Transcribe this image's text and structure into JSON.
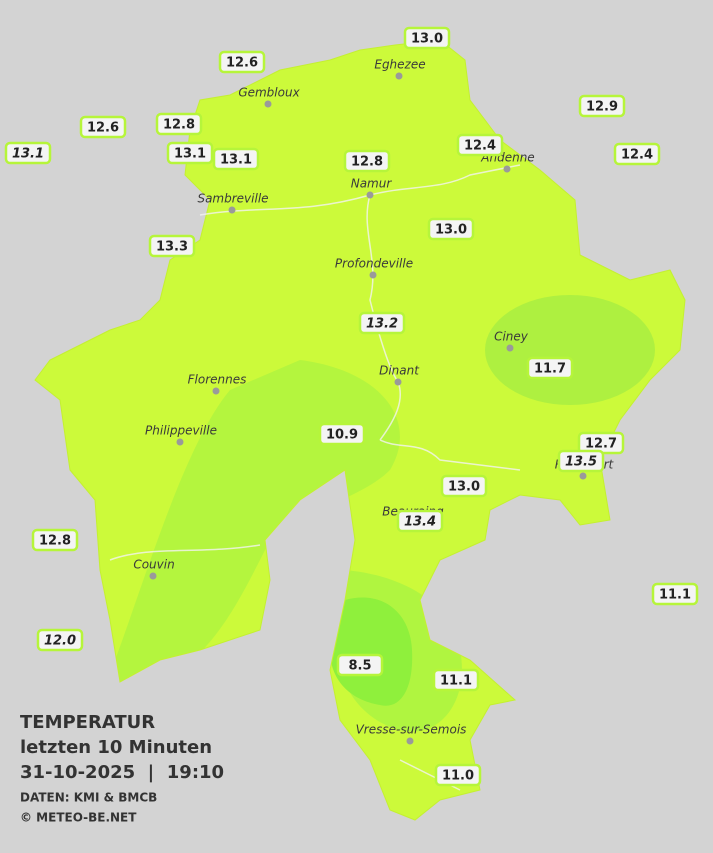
{
  "header": {
    "title": "TEMPERATUR",
    "subtitle": "letzten 10 Minuten",
    "datetime": "31-10-2025  |  19:10",
    "source": "DATEN: KMI & BMCB",
    "credit": "© METEO-BE.NET"
  },
  "cities": [
    "Eghezee",
    "Gembloux",
    "Andenne",
    "Namur",
    "Sambreville",
    "Profondeville",
    "Ciney",
    "Dinant",
    "Florennes",
    "Philippeville",
    "Rochefort",
    "Beauraing",
    "Couvin",
    "Vresse-sur-Semois"
  ],
  "stations": [
    "13.0",
    "12.6",
    "12.9",
    "12.6",
    "12.8",
    "13.1",
    "13.1",
    "13.1",
    "12.8",
    "12.4",
    "12.4",
    "13.3",
    "13.0",
    "13.2",
    "11.7",
    "10.9",
    "12.7",
    "13.5",
    "13.0",
    "13.4",
    "12.8",
    "11.1",
    "12.0",
    "8.5",
    "11.1",
    "11.0"
  ]
}
